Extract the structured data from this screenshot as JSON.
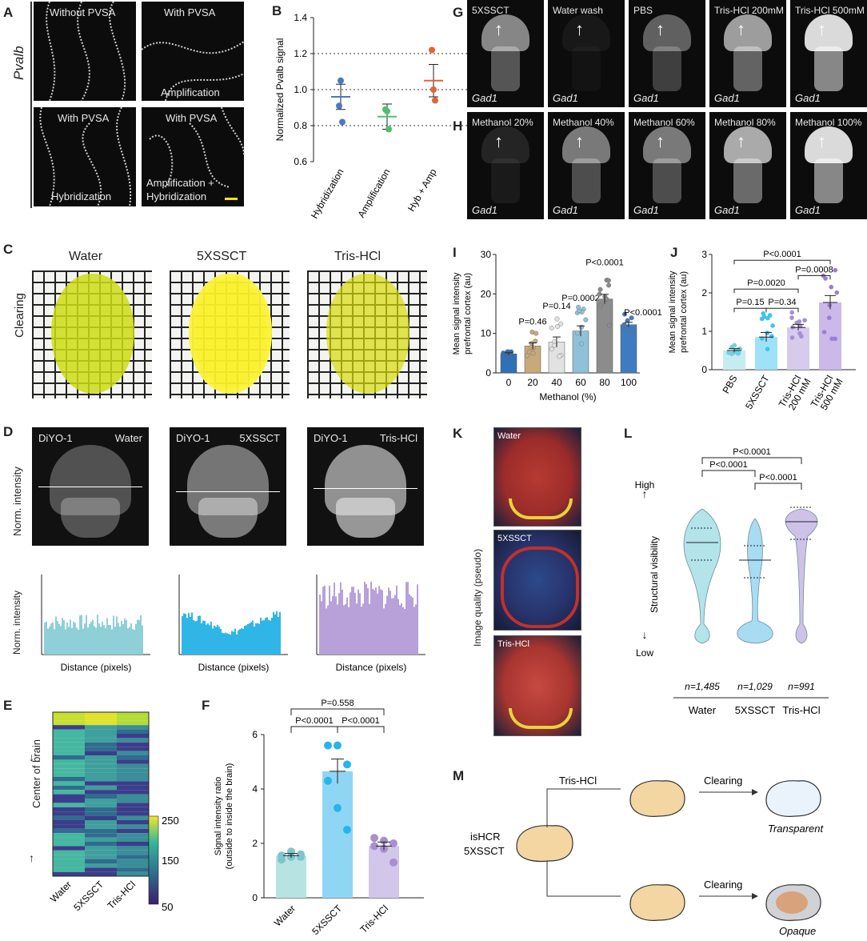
{
  "panel_letters": {
    "a": "A",
    "b": "B",
    "c": "C",
    "d": "D",
    "e": "E",
    "f": "F",
    "g": "G",
    "h": "H",
    "i": "I",
    "j": "J",
    "k": "K",
    "l": "L",
    "m": "M"
  },
  "panel_a": {
    "side_label": "Pvalb",
    "tiles": [
      "Without PVSA",
      "With PVSA",
      "With PVSA",
      "With PVSA"
    ],
    "captions": [
      "",
      "Amplification",
      "Hybridization",
      "Amplification +\nHybridization"
    ],
    "scale_color": "#f2e600"
  },
  "panel_c": {
    "side_label": "Clearing",
    "columns": [
      "Water",
      "5XSSCT",
      "Tris-HCl"
    ]
  },
  "panel_d": {
    "side_label": "Norm. intensity",
    "stain": "DiYO-1",
    "columns": [
      "Water",
      "5XSSCT",
      "Tris-HCl"
    ],
    "xlabel": "Distance (pixels)",
    "profile_colors": [
      "#8fd0d8",
      "#30b6e6",
      "#b7a1d8"
    ]
  },
  "panel_e": {
    "side_label": "Center of brain",
    "ticks": [
      "250",
      "150",
      "50"
    ],
    "columns": [
      "Water",
      "5XSSCT",
      "Tris-HCl"
    ]
  },
  "panel_g": {
    "labels": [
      "5XSSCT",
      "Water wash",
      "PBS",
      "Tris-HCl 200mM",
      "Tris-HCl 500mM"
    ],
    "gene": "Gad1"
  },
  "panel_h": {
    "labels": [
      "Methanol 20%",
      "Methanol 40%",
      "Methanol 60%",
      "Methanol 80%",
      "Methanol 100%"
    ],
    "gene": "Gad1"
  },
  "panel_k": {
    "ylabel": "Image quality (pseudo)",
    "labels": [
      "Water",
      "5XSSCT",
      "Tris-HCl"
    ]
  },
  "panel_m": {
    "left_label_1": "isHCR",
    "left_label_2": "5XSSCT",
    "branch_top": "Tris-HCl",
    "step_label": "Clearing",
    "result_top": "Transparent",
    "result_bottom": "Opaque"
  },
  "chart_data": [
    {
      "id": "B",
      "type": "scatter",
      "title": "",
      "ylabel": "Normalized Pvalb signal",
      "ylim": [
        0.6,
        1.4
      ],
      "yticks": [
        "0.6",
        "0.8",
        "1.0",
        "1.2",
        "1.4"
      ],
      "reference_lines": [
        0.8,
        1.0,
        1.2
      ],
      "categories": [
        "Hybridization",
        "Amplification",
        "Hyb + Amp"
      ],
      "colors": [
        "#4a78c2",
        "#4fbf6a",
        "#e3623a"
      ],
      "means": [
        0.96,
        0.85,
        1.05
      ],
      "errors": [
        0.07,
        0.07,
        0.09
      ],
      "points": [
        [
          0.91,
          1.05,
          0.82
        ],
        [
          0.89,
          0.88,
          0.78
        ],
        [
          1.22,
          1.0,
          0.94
        ]
      ]
    },
    {
      "id": "F",
      "type": "bar",
      "title": "",
      "ylabel": "Signal intensity ratio (outside to inside the brain)",
      "ylim": [
        0,
        6
      ],
      "yticks": [
        "0",
        "2",
        "4",
        "6"
      ],
      "categories": [
        "Water",
        "5XSSCT",
        "Tris-HCl"
      ],
      "values": [
        1.55,
        4.65,
        1.9
      ],
      "errors": [
        0.08,
        0.45,
        0.15
      ],
      "colors": [
        "#b7e3e3",
        "#8fd6f4",
        "#d2c6ea"
      ],
      "dot_colors": [
        "#7dc6cb",
        "#26b5ea",
        "#a88fd0"
      ],
      "points": [
        [
          1.4,
          1.5,
          1.6,
          1.55,
          1.7,
          1.5
        ],
        [
          5.6,
          5.6,
          4.9,
          4.3,
          3.3,
          2.5
        ],
        [
          2.2,
          2.1,
          2.0,
          1.9,
          1.8,
          1.3
        ]
      ],
      "comparisons": [
        {
          "label": "P<0.0001",
          "from": 0,
          "to": 1
        },
        {
          "label": "P<0.0001",
          "from": 1,
          "to": 2
        },
        {
          "label": "P=0.558",
          "from": 0,
          "to": 2
        }
      ]
    },
    {
      "id": "I",
      "type": "bar",
      "title": "",
      "ylabel": "Mean signal intensity prefrontal cortex (au)",
      "xlabel": "Methanol (%)",
      "ylim": [
        0,
        30
      ],
      "yticks": [
        "0",
        "10",
        "20",
        "30"
      ],
      "categories": [
        "0",
        "20",
        "40",
        "60",
        "80",
        "100"
      ],
      "values": [
        4.8,
        6.8,
        7.8,
        10.6,
        18.7,
        12.2
      ],
      "errors": [
        0.3,
        0.8,
        1.3,
        1.3,
        1.2,
        0.6
      ],
      "colors": [
        "#2f70b8",
        "#c8a97a",
        "#e2e2e2",
        "#8fc2d8",
        "#8c8c8c",
        "#3e7cc2"
      ],
      "point_spread": [
        [
          4.2,
          5.4
        ],
        [
          3.5,
          11
        ],
        [
          3,
          15
        ],
        [
          5,
          17
        ],
        [
          10,
          26
        ],
        [
          9,
          15
        ]
      ],
      "p_labels": [
        "",
        "P=0.46",
        "P=0.14",
        "P=0.0002",
        "P<0.0001",
        "P<0.0001"
      ]
    },
    {
      "id": "J",
      "type": "bar",
      "title": "",
      "ylabel": "Mean signal intensity prefrontal cortex (au)",
      "ylim": [
        0,
        3
      ],
      "yticks": [
        "0",
        "1",
        "2",
        "3"
      ],
      "categories": [
        "PBS",
        "5XSSCT",
        "Tris-HCl 200 mM",
        "Tris-HCl 500 mM"
      ],
      "values": [
        0.5,
        0.85,
        1.1,
        1.75
      ],
      "errors": [
        0.05,
        0.12,
        0.08,
        0.18
      ],
      "colors": [
        "#c6ecf1",
        "#9fe1f7",
        "#d6cbec",
        "#cbb9ea"
      ],
      "dot_colors": [
        "#72d1de",
        "#3cc4ef",
        "#a48fd4",
        "#9b7fd0"
      ],
      "point_spread": [
        [
          0.35,
          0.65
        ],
        [
          0.3,
          1.5
        ],
        [
          0.8,
          1.5
        ],
        [
          0.8,
          2.6
        ]
      ],
      "comparisons": [
        {
          "label": "P=0.15",
          "from": 0,
          "to": 1
        },
        {
          "label": "P=0.34",
          "from": 1,
          "to": 2
        },
        {
          "label": "P=0.0020",
          "from": 0,
          "to": 2
        },
        {
          "label": "P=0.0008",
          "from": 2,
          "to": 3
        },
        {
          "label": "P<0.0001",
          "from": 0,
          "to": 3
        }
      ]
    },
    {
      "id": "L",
      "type": "violin",
      "title": "",
      "ylabel": "Structural visibility",
      "ytop": "High",
      "ybottom": "Low",
      "categories": [
        "Water",
        "5XSSCT",
        "Tris-HCl"
      ],
      "n_labels": [
        "n=1,485",
        "n=1,029",
        "n=991"
      ],
      "colors": [
        "#b2e4ea",
        "#a7dcf3",
        "#cfc2e8"
      ],
      "comparisons": [
        {
          "label": "P<0.0001",
          "from": 0,
          "to": 1
        },
        {
          "label": "P<0.0001",
          "from": 1,
          "to": 2
        },
        {
          "label": "P<0.0001",
          "from": 0,
          "to": 2
        }
      ]
    }
  ]
}
